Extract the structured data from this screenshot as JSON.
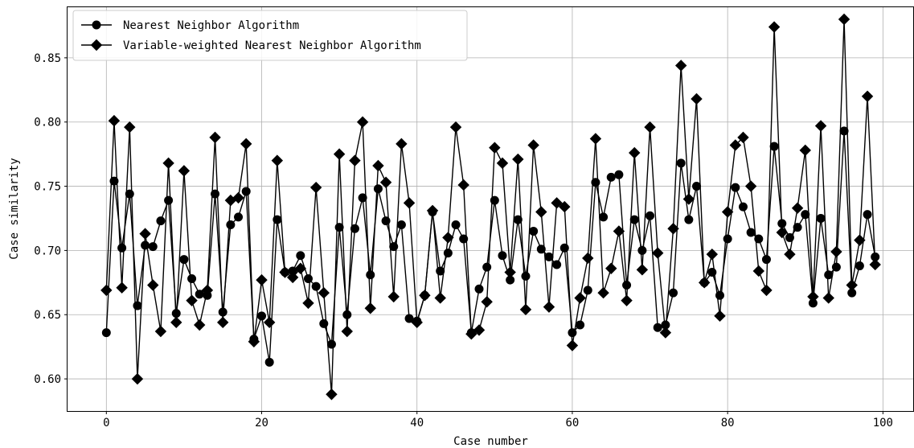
{
  "chart_data": {
    "type": "line",
    "xlabel": "Case number",
    "ylabel": "Case similarity",
    "xlim": [
      -5,
      104
    ],
    "ylim": [
      0.575,
      0.89
    ],
    "xticks": [
      0,
      20,
      40,
      60,
      80,
      100
    ],
    "yticks": [
      0.6,
      0.65,
      0.7,
      0.75,
      0.8,
      0.85
    ],
    "grid": true,
    "legend_position": "top-left",
    "line_color": "#000000",
    "series": [
      {
        "name": "Nearest Neighbor Algorithm",
        "marker": "circle",
        "x": [
          0,
          1,
          2,
          3,
          4,
          5,
          6,
          7,
          8,
          9,
          10,
          11,
          12,
          13,
          14,
          15,
          16,
          17,
          18,
          19,
          20,
          21,
          22,
          23,
          24,
          25,
          26,
          27,
          28,
          29,
          30,
          31,
          32,
          33,
          34,
          35,
          36,
          37,
          38,
          39,
          40,
          41,
          42,
          43,
          44,
          45,
          46,
          47,
          48,
          49,
          50,
          51,
          52,
          53,
          54,
          55,
          56,
          57,
          58,
          59,
          60,
          61,
          62,
          63,
          64,
          65,
          66,
          67,
          68,
          69,
          70,
          71,
          72,
          73,
          74,
          75,
          76,
          77,
          78,
          79,
          80,
          81,
          82,
          83,
          84,
          85,
          86,
          87,
          88,
          89,
          90,
          91,
          92,
          93,
          94,
          95,
          96,
          97,
          98,
          99
        ],
        "y": [
          0.636,
          0.754,
          0.702,
          0.744,
          0.657,
          0.704,
          0.703,
          0.723,
          0.739,
          0.651,
          0.693,
          0.678,
          0.666,
          0.665,
          0.744,
          0.652,
          0.72,
          0.726,
          0.746,
          0.631,
          0.649,
          0.613,
          0.724,
          0.683,
          0.684,
          0.696,
          0.678,
          0.672,
          0.643,
          0.627,
          0.718,
          0.65,
          0.717,
          0.741,
          0.681,
          0.748,
          0.723,
          0.703,
          0.72,
          0.647,
          0.645,
          0.665,
          0.73,
          0.684,
          0.698,
          0.72,
          0.709,
          0.636,
          0.67,
          0.687,
          0.739,
          0.696,
          0.677,
          0.724,
          0.68,
          0.715,
          0.701,
          0.695,
          0.689,
          0.702,
          0.636,
          0.642,
          0.669,
          0.753,
          0.726,
          0.757,
          0.759,
          0.673,
          0.724,
          0.7,
          0.727,
          0.64,
          0.642,
          0.667,
          0.768,
          0.724,
          0.75,
          0.675,
          0.683,
          0.665,
          0.709,
          0.749,
          0.734,
          0.714,
          0.709,
          0.693,
          0.781,
          0.721,
          0.71,
          0.718,
          0.728,
          0.659,
          0.725,
          0.681,
          0.687,
          0.793,
          0.667,
          0.688,
          0.728,
          0.695
        ]
      },
      {
        "name": "Variable-weighted Nearest Neighbor Algorithm",
        "marker": "diamond",
        "x": [
          0,
          1,
          2,
          3,
          4,
          5,
          6,
          7,
          8,
          9,
          10,
          11,
          12,
          13,
          14,
          15,
          16,
          17,
          18,
          19,
          20,
          21,
          22,
          23,
          24,
          25,
          26,
          27,
          28,
          29,
          30,
          31,
          32,
          33,
          34,
          35,
          36,
          37,
          38,
          39,
          40,
          41,
          42,
          43,
          44,
          45,
          46,
          47,
          48,
          49,
          50,
          51,
          52,
          53,
          54,
          55,
          56,
          57,
          58,
          59,
          60,
          61,
          62,
          63,
          64,
          65,
          66,
          67,
          68,
          69,
          70,
          71,
          72,
          73,
          74,
          75,
          76,
          77,
          78,
          79,
          80,
          81,
          82,
          83,
          84,
          85,
          86,
          87,
          88,
          89,
          90,
          91,
          92,
          93,
          94,
          95,
          96,
          97,
          98,
          99
        ],
        "y": [
          0.669,
          0.801,
          0.671,
          0.796,
          0.6,
          0.713,
          0.673,
          0.637,
          0.768,
          0.644,
          0.762,
          0.661,
          0.642,
          0.669,
          0.788,
          0.644,
          0.739,
          0.741,
          0.783,
          0.629,
          0.677,
          0.644,
          0.77,
          0.683,
          0.679,
          0.686,
          0.659,
          0.749,
          0.667,
          0.588,
          0.775,
          0.637,
          0.77,
          0.8,
          0.655,
          0.766,
          0.753,
          0.664,
          0.783,
          0.737,
          0.644,
          0.665,
          0.731,
          0.663,
          0.71,
          0.796,
          0.751,
          0.635,
          0.638,
          0.66,
          0.78,
          0.768,
          0.683,
          0.771,
          0.654,
          0.782,
          0.73,
          0.656,
          0.737,
          0.734,
          0.626,
          0.663,
          0.694,
          0.787,
          0.667,
          0.686,
          0.715,
          0.661,
          0.776,
          0.685,
          0.796,
          0.698,
          0.636,
          0.717,
          0.844,
          0.74,
          0.818,
          0.675,
          0.697,
          0.649,
          0.73,
          0.782,
          0.788,
          0.75,
          0.684,
          0.669,
          0.874,
          0.714,
          0.697,
          0.733,
          0.778,
          0.664,
          0.797,
          0.663,
          0.699,
          0.88,
          0.673,
          0.708,
          0.82,
          0.689
        ]
      }
    ]
  }
}
